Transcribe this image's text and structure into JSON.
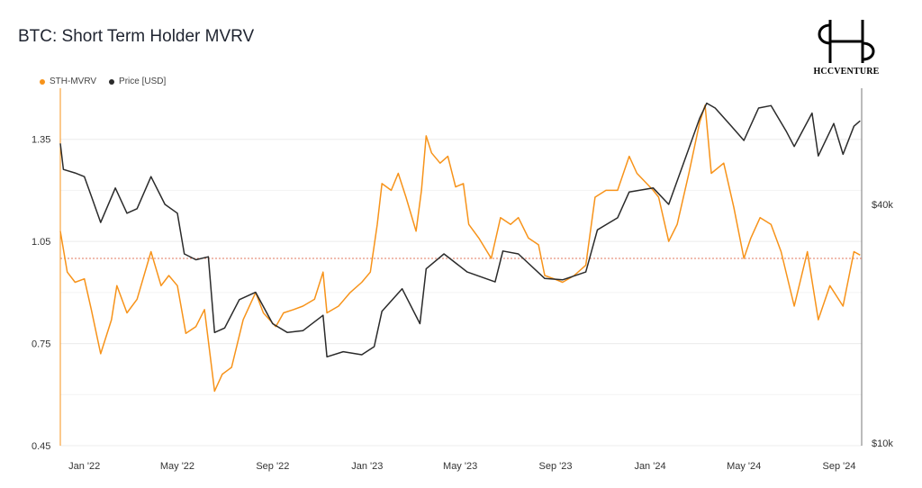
{
  "title": "BTC: Short Term Holder MVRV",
  "logo": {
    "text": "HCCVENTURE"
  },
  "colors": {
    "mvrv": "#f7931a",
    "price": "#2b2b2b",
    "reference": "#e07a5f"
  },
  "chart_data": {
    "type": "line",
    "title": "BTC: Short Term Holder MVRV",
    "legend": {
      "placement": "top-left",
      "entries": [
        "STH-MVRV",
        "Price [USD]"
      ]
    },
    "x_ticks": [
      "Jan '22",
      "May '22",
      "Sep '22",
      "Jan '23",
      "May '23",
      "Sep '23",
      "Jan '24",
      "May '24",
      "Sep '24"
    ],
    "x_range": [
      "2021-12-01",
      "2024-09-30"
    ],
    "y_left": {
      "ticks": [
        "1.35",
        "1.05",
        "0.75",
        "0.45"
      ],
      "range": [
        0.45,
        1.5
      ]
    },
    "y_right": {
      "ticks": [
        "$40k",
        "$10k"
      ],
      "scale": "log"
    },
    "reference_line": {
      "value": 1.0,
      "style": "dotted",
      "axis": "left"
    },
    "grid": true,
    "series": [
      {
        "name": "STH-MVRV",
        "axis": "left",
        "points": [
          [
            "2021-12-01",
            1.08
          ],
          [
            "2021-12-10",
            0.96
          ],
          [
            "2021-12-20",
            0.93
          ],
          [
            "2022-01-01",
            0.94
          ],
          [
            "2022-01-10",
            0.85
          ],
          [
            "2022-01-22",
            0.72
          ],
          [
            "2022-02-05",
            0.82
          ],
          [
            "2022-02-12",
            0.92
          ],
          [
            "2022-02-25",
            0.84
          ],
          [
            "2022-03-10",
            0.88
          ],
          [
            "2022-03-28",
            1.02
          ],
          [
            "2022-04-10",
            0.92
          ],
          [
            "2022-04-20",
            0.95
          ],
          [
            "2022-05-01",
            0.92
          ],
          [
            "2022-05-12",
            0.78
          ],
          [
            "2022-05-25",
            0.8
          ],
          [
            "2022-06-05",
            0.85
          ],
          [
            "2022-06-18",
            0.61
          ],
          [
            "2022-06-28",
            0.66
          ],
          [
            "2022-07-10",
            0.68
          ],
          [
            "2022-07-25",
            0.82
          ],
          [
            "2022-08-10",
            0.9
          ],
          [
            "2022-08-20",
            0.84
          ],
          [
            "2022-09-05",
            0.8
          ],
          [
            "2022-09-15",
            0.84
          ],
          [
            "2022-09-28",
            0.85
          ],
          [
            "2022-10-10",
            0.86
          ],
          [
            "2022-10-25",
            0.88
          ],
          [
            "2022-11-05",
            0.96
          ],
          [
            "2022-11-10",
            0.84
          ],
          [
            "2022-11-25",
            0.86
          ],
          [
            "2022-12-10",
            0.9
          ],
          [
            "2022-12-25",
            0.93
          ],
          [
            "2023-01-05",
            0.96
          ],
          [
            "2023-01-14",
            1.1
          ],
          [
            "2023-01-20",
            1.22
          ],
          [
            "2023-02-01",
            1.2
          ],
          [
            "2023-02-10",
            1.25
          ],
          [
            "2023-02-20",
            1.18
          ],
          [
            "2023-03-05",
            1.08
          ],
          [
            "2023-03-12",
            1.2
          ],
          [
            "2023-03-18",
            1.36
          ],
          [
            "2023-03-25",
            1.31
          ],
          [
            "2023-04-05",
            1.28
          ],
          [
            "2023-04-15",
            1.3
          ],
          [
            "2023-04-25",
            1.21
          ],
          [
            "2023-05-05",
            1.22
          ],
          [
            "2023-05-12",
            1.1
          ],
          [
            "2023-05-25",
            1.06
          ],
          [
            "2023-06-10",
            1.0
          ],
          [
            "2023-06-22",
            1.12
          ],
          [
            "2023-07-05",
            1.1
          ],
          [
            "2023-07-15",
            1.12
          ],
          [
            "2023-07-28",
            1.06
          ],
          [
            "2023-08-10",
            1.04
          ],
          [
            "2023-08-18",
            0.95
          ],
          [
            "2023-08-30",
            0.94
          ],
          [
            "2023-09-10",
            0.93
          ],
          [
            "2023-09-25",
            0.95
          ],
          [
            "2023-10-10",
            0.98
          ],
          [
            "2023-10-22",
            1.18
          ],
          [
            "2023-11-05",
            1.2
          ],
          [
            "2023-11-20",
            1.2
          ],
          [
            "2023-12-05",
            1.3
          ],
          [
            "2023-12-15",
            1.25
          ],
          [
            "2024-01-05",
            1.2
          ],
          [
            "2024-01-12",
            1.18
          ],
          [
            "2024-01-25",
            1.05
          ],
          [
            "2024-02-05",
            1.1
          ],
          [
            "2024-02-20",
            1.25
          ],
          [
            "2024-03-05",
            1.4
          ],
          [
            "2024-03-12",
            1.45
          ],
          [
            "2024-03-20",
            1.25
          ],
          [
            "2024-04-05",
            1.28
          ],
          [
            "2024-04-18",
            1.15
          ],
          [
            "2024-05-01",
            1.0
          ],
          [
            "2024-05-10",
            1.06
          ],
          [
            "2024-05-22",
            1.12
          ],
          [
            "2024-06-05",
            1.1
          ],
          [
            "2024-06-18",
            1.02
          ],
          [
            "2024-07-05",
            0.86
          ],
          [
            "2024-07-22",
            1.02
          ],
          [
            "2024-08-05",
            0.82
          ],
          [
            "2024-08-20",
            0.92
          ],
          [
            "2024-09-06",
            0.86
          ],
          [
            "2024-09-20",
            1.02
          ],
          [
            "2024-09-28",
            1.01
          ]
        ]
      },
      {
        "name": "Price [USD]",
        "axis": "right",
        "points": [
          [
            "2021-12-01",
            57000
          ],
          [
            "2021-12-05",
            49000
          ],
          [
            "2021-12-20",
            48000
          ],
          [
            "2022-01-01",
            47000
          ],
          [
            "2022-01-10",
            42000
          ],
          [
            "2022-01-22",
            36000
          ],
          [
            "2022-02-10",
            44000
          ],
          [
            "2022-02-25",
            38000
          ],
          [
            "2022-03-10",
            39000
          ],
          [
            "2022-03-28",
            47000
          ],
          [
            "2022-04-15",
            40000
          ],
          [
            "2022-05-01",
            38000
          ],
          [
            "2022-05-10",
            30000
          ],
          [
            "2022-05-25",
            29000
          ],
          [
            "2022-06-10",
            29500
          ],
          [
            "2022-06-18",
            19000
          ],
          [
            "2022-07-01",
            19500
          ],
          [
            "2022-07-20",
            23000
          ],
          [
            "2022-08-10",
            24000
          ],
          [
            "2022-09-01",
            20000
          ],
          [
            "2022-09-20",
            19000
          ],
          [
            "2022-10-10",
            19200
          ],
          [
            "2022-11-05",
            21000
          ],
          [
            "2022-11-10",
            16500
          ],
          [
            "2022-12-01",
            17000
          ],
          [
            "2022-12-25",
            16700
          ],
          [
            "2023-01-10",
            17500
          ],
          [
            "2023-01-20",
            21500
          ],
          [
            "2023-02-15",
            24500
          ],
          [
            "2023-03-10",
            20000
          ],
          [
            "2023-03-18",
            27500
          ],
          [
            "2023-04-10",
            30000
          ],
          [
            "2023-05-10",
            27000
          ],
          [
            "2023-06-15",
            25500
          ],
          [
            "2023-06-25",
            30500
          ],
          [
            "2023-07-15",
            30000
          ],
          [
            "2023-08-18",
            26000
          ],
          [
            "2023-09-10",
            25800
          ],
          [
            "2023-10-10",
            27000
          ],
          [
            "2023-10-25",
            34500
          ],
          [
            "2023-11-20",
            37000
          ],
          [
            "2023-12-05",
            43000
          ],
          [
            "2024-01-05",
            44000
          ],
          [
            "2024-01-25",
            40000
          ],
          [
            "2024-02-15",
            52000
          ],
          [
            "2024-03-05",
            66000
          ],
          [
            "2024-03-14",
            72000
          ],
          [
            "2024-03-25",
            70000
          ],
          [
            "2024-04-15",
            63000
          ],
          [
            "2024-05-01",
            58000
          ],
          [
            "2024-05-20",
            70000
          ],
          [
            "2024-06-05",
            71000
          ],
          [
            "2024-06-25",
            61000
          ],
          [
            "2024-07-05",
            56000
          ],
          [
            "2024-07-28",
            68000
          ],
          [
            "2024-08-05",
            53000
          ],
          [
            "2024-08-25",
            64000
          ],
          [
            "2024-09-06",
            53500
          ],
          [
            "2024-09-20",
            63000
          ],
          [
            "2024-09-28",
            65000
          ]
        ]
      }
    ]
  }
}
